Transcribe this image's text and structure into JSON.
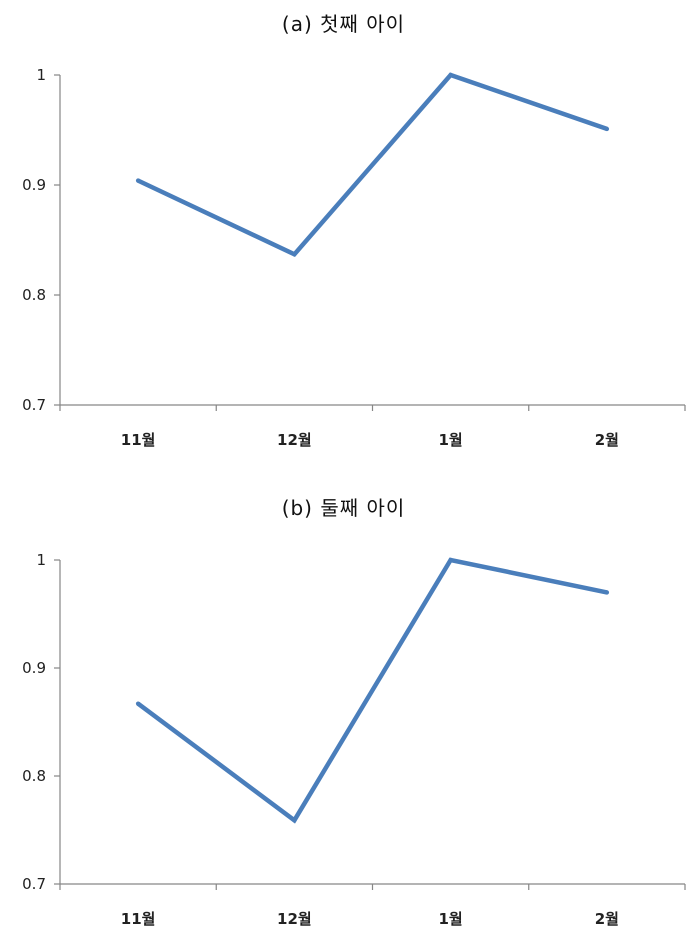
{
  "chart_data": [
    {
      "type": "line",
      "title": "(a) 첫째 아이",
      "categories": [
        "11월",
        "12월",
        "1월",
        "2월"
      ],
      "values": [
        0.904,
        0.837,
        1.0,
        0.951
      ],
      "ylim": [
        0.7,
        1.0
      ],
      "yticks": [
        "0.7",
        "0.8",
        "0.9",
        "1"
      ],
      "grid": false,
      "line_color": "#4a7ebb"
    },
    {
      "type": "line",
      "title": "(b) 둘째 아이",
      "categories": [
        "11월",
        "12월",
        "1월",
        "2월"
      ],
      "values": [
        0.867,
        0.759,
        1.0,
        0.97
      ],
      "ylim": [
        0.7,
        1.0
      ],
      "yticks": [
        "0.7",
        "0.8",
        "0.9",
        "1"
      ],
      "grid": false,
      "line_color": "#4a7ebb"
    }
  ]
}
